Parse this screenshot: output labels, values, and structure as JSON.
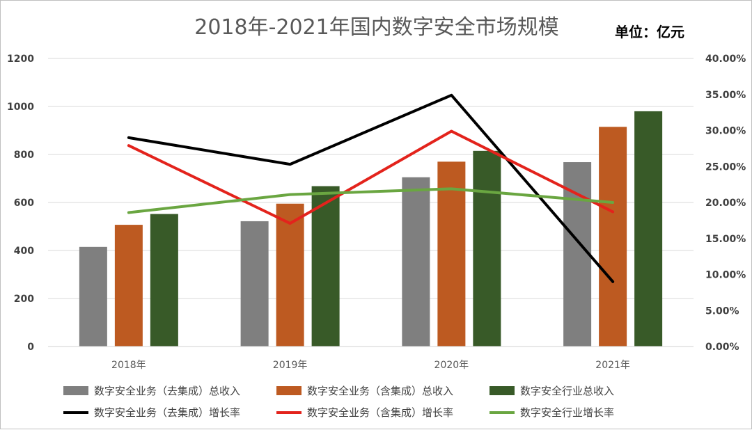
{
  "chart_data": {
    "type": "bar",
    "title": "2018年-2021年国内数字安全市场规模",
    "unit_label": "单位：亿元",
    "categories": [
      "2018年",
      "2019年",
      "2020年",
      "2021年"
    ],
    "y_left": {
      "ylim": [
        0,
        1200
      ],
      "ticks": [
        "0",
        "200",
        "400",
        "600",
        "800",
        "1000",
        "1200"
      ],
      "tick_values": [
        0,
        200,
        400,
        600,
        800,
        1000,
        1200
      ]
    },
    "y_right": {
      "ylim": [
        0,
        0.4
      ],
      "ticks": [
        "0.00%",
        "5.00%",
        "10.00%",
        "15.00%",
        "20.00%",
        "25.00%",
        "30.00%",
        "35.00%",
        "40.00%"
      ],
      "tick_values": [
        0,
        0.05,
        0.1,
        0.15,
        0.2,
        0.25,
        0.3,
        0.35,
        0.4
      ]
    },
    "grid": true,
    "legend_position": "bottom",
    "bar_series": [
      {
        "name": "数字安全业务（去集成）总收入",
        "color": "#7f7f7f",
        "values": [
          415,
          522,
          705,
          768
        ]
      },
      {
        "name": "数字安全业务（含集成）总收入",
        "color": "#bd5a21",
        "values": [
          507,
          595,
          770,
          915
        ]
      },
      {
        "name": "数字安全行业总收入",
        "color": "#385a28",
        "values": [
          552,
          668,
          815,
          980
        ]
      }
    ],
    "line_series": [
      {
        "name": "数字安全业务（去集成）增长率",
        "color": "#000000",
        "axis": "right",
        "values": [
          0.29,
          0.253,
          0.349,
          0.09
        ]
      },
      {
        "name": "数字安全业务（含集成）增长率",
        "color": "#e3231c",
        "axis": "right",
        "values": [
          0.279,
          0.171,
          0.299,
          0.187
        ]
      },
      {
        "name": "数字安全行业增长率",
        "color": "#6aa641",
        "axis": "right",
        "values": [
          0.186,
          0.211,
          0.219,
          0.2
        ]
      }
    ]
  }
}
